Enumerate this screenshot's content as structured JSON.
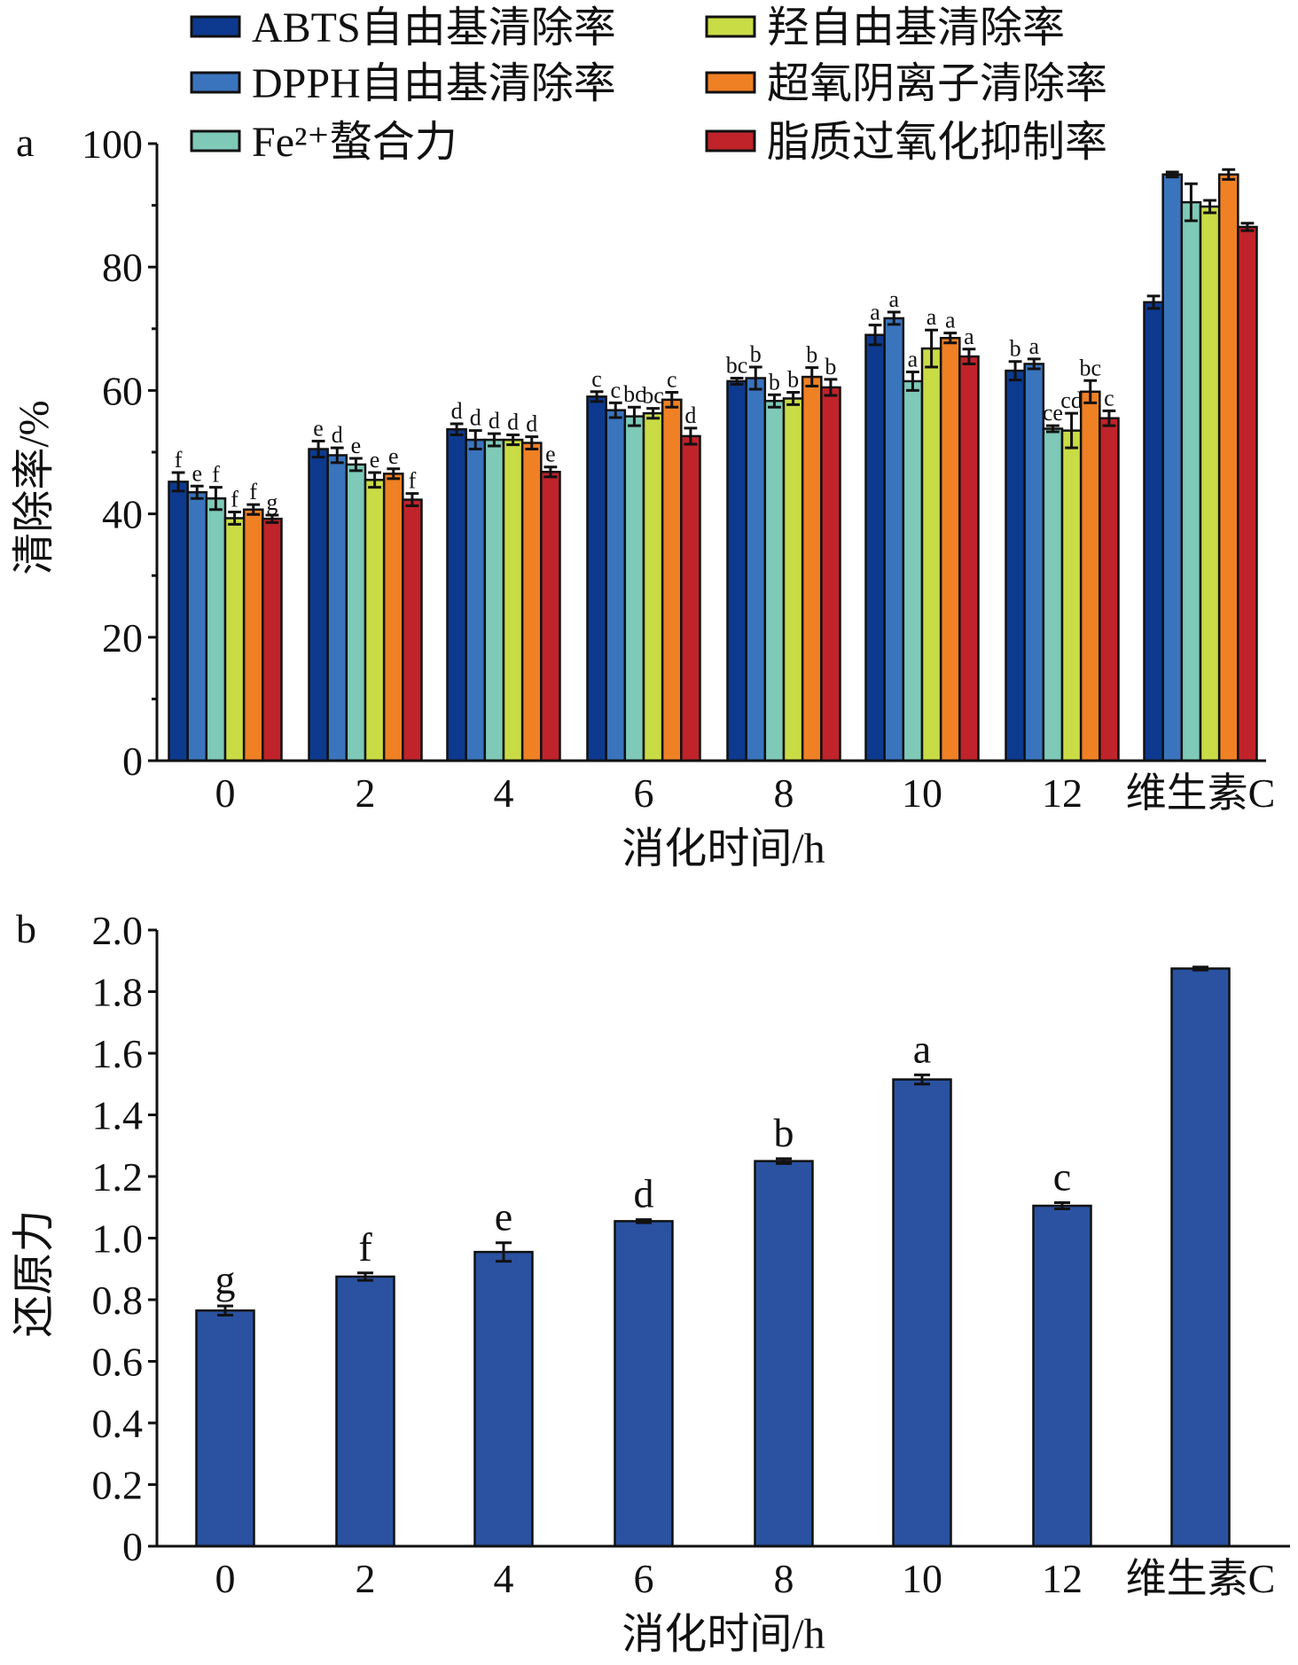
{
  "chart_data": [
    {
      "type": "bar",
      "panel_label": "a",
      "xlabel": "消化时间/h",
      "ylabel": "清除率/%",
      "categories": [
        "0",
        "2",
        "4",
        "6",
        "8",
        "10",
        "12",
        "维生素C"
      ],
      "ylim": [
        0,
        100
      ],
      "yticks": [
        "0",
        "20",
        "40",
        "60",
        "80",
        "100"
      ],
      "grid": false,
      "legend_position": "top",
      "series": [
        {
          "name": "ABTS自由基清除率",
          "color": "#0d3a8f",
          "values": [
            45.2,
            50.5,
            53.7,
            59.0,
            61.5,
            69.0,
            63.2,
            74.3
          ],
          "errors": [
            1.5,
            1.3,
            0.9,
            0.8,
            0.5,
            1.6,
            1.5,
            1.0
          ],
          "letters": [
            "f",
            "e",
            "d",
            "c",
            "bc",
            "a",
            "b",
            ""
          ]
        },
        {
          "name": "DPPH自由基清除率",
          "color": "#3a74bd",
          "values": [
            43.5,
            49.5,
            52.0,
            56.8,
            62.0,
            71.7,
            64.3,
            95.0
          ],
          "errors": [
            1.0,
            1.2,
            1.5,
            1.2,
            1.8,
            1.0,
            0.8,
            0.4
          ],
          "letters": [
            "e",
            "d",
            "d",
            "c",
            "b",
            "a",
            "a",
            ""
          ]
        },
        {
          "name": "Fe²⁺螯合力",
          "color": "#7ec9b8",
          "values": [
            42.5,
            48.0,
            52.0,
            55.8,
            58.3,
            61.5,
            53.8,
            90.5
          ],
          "errors": [
            1.8,
            1.0,
            1.0,
            1.5,
            1.0,
            1.5,
            0.5,
            3.0
          ],
          "letters": [
            "f",
            "e",
            "d",
            "bc",
            "b",
            "a",
            "ce",
            ""
          ]
        },
        {
          "name": "羟自由基清除率",
          "color": "#c9dc45",
          "values": [
            39.3,
            45.5,
            52.0,
            56.3,
            58.7,
            66.8,
            53.5,
            89.8
          ],
          "errors": [
            1.0,
            1.2,
            0.8,
            0.8,
            1.0,
            3.0,
            2.8,
            1.0
          ],
          "letters": [
            "f",
            "e",
            "d",
            "bc",
            "b",
            "a",
            "cd",
            ""
          ]
        },
        {
          "name": "超氧阴离子清除率",
          "color": "#f08024",
          "values": [
            40.7,
            46.5,
            51.5,
            58.5,
            62.2,
            68.5,
            59.8,
            95.0
          ],
          "errors": [
            0.8,
            0.8,
            1.0,
            1.2,
            1.5,
            0.8,
            1.8,
            0.8
          ],
          "letters": [
            "f",
            "e",
            "d",
            "c",
            "b",
            "a",
            "bc",
            ""
          ]
        },
        {
          "name": "脂质过氧化抑制率",
          "color": "#c0232a",
          "values": [
            39.2,
            42.3,
            46.8,
            52.6,
            60.5,
            65.5,
            55.5,
            86.5
          ],
          "errors": [
            0.6,
            1.0,
            0.8,
            1.3,
            1.3,
            1.2,
            1.2,
            0.6
          ],
          "letters": [
            "g",
            "f",
            "e",
            "d",
            "b",
            "a",
            "c",
            ""
          ]
        }
      ]
    },
    {
      "type": "bar",
      "panel_label": "b",
      "xlabel": "消化时间/h",
      "ylabel": "还原力",
      "categories": [
        "0",
        "2",
        "4",
        "6",
        "8",
        "10",
        "12",
        "维生素C"
      ],
      "ylim": [
        0,
        2.0
      ],
      "yticks": [
        "0",
        "0.2",
        "0.4",
        "0.6",
        "0.8",
        "1.0",
        "1.2",
        "1.4",
        "1.6",
        "1.8",
        "2.0"
      ],
      "grid": false,
      "series": [
        {
          "color": "#2a52a0",
          "values": [
            0.765,
            0.875,
            0.955,
            1.055,
            1.25,
            1.515,
            1.105,
            1.875
          ],
          "errors": [
            0.015,
            0.012,
            0.03,
            0.005,
            0.008,
            0.015,
            0.01,
            0.005
          ],
          "letters": [
            "g",
            "f",
            "e",
            "d",
            "b",
            "a",
            "c",
            ""
          ]
        }
      ]
    }
  ]
}
